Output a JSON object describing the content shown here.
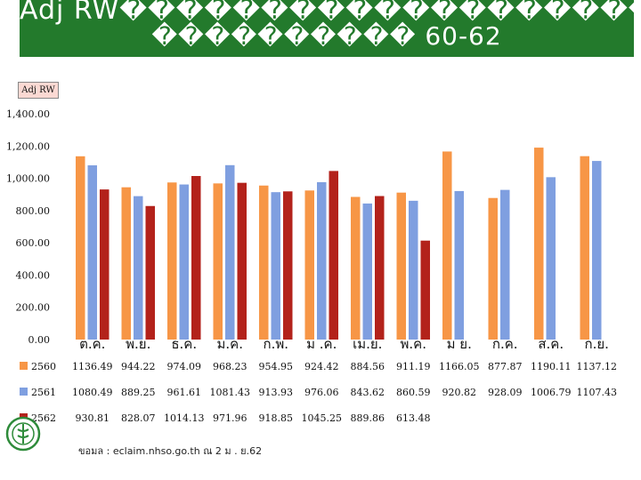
{
  "title": {
    "line1": "Adj RW����������������������อละละ",
    "line2": "���������� 60-62"
  },
  "chart_data": {
    "type": "bar",
    "y_axis_title": "Adj RW",
    "ylim": [
      0,
      1400
    ],
    "y_ticks": [
      "0.00",
      "200.00",
      "400.00",
      "600.00",
      "800.00",
      "1,000.00",
      "1,200.00",
      "1,400.00"
    ],
    "grid": false,
    "categories": [
      "ต.ค.",
      "พ.ย.",
      "ธ.ค.",
      "ม.ค.",
      "ก.พ.",
      "ม .ค.",
      "เม.ย.",
      "พ.ค.",
      "ม ย.",
      "ก.ค.",
      "ส.ค.",
      "ก.ย."
    ],
    "series": [
      {
        "name": "2560",
        "color": "#F79646",
        "values": [
          1136.49,
          944.22,
          974.09,
          968.23,
          954.95,
          924.42,
          884.56,
          911.19,
          1166.05,
          877.87,
          1190.11,
          1137.12
        ],
        "labels": [
          "1136.49",
          "944.22",
          "974.09",
          "968.23",
          "954.95",
          "924.42",
          "884.56",
          "911.19",
          "1166.05",
          "877.87",
          "1190.11",
          "1137.12"
        ]
      },
      {
        "name": "2561",
        "color": "#7F9FE0",
        "values": [
          1080.49,
          889.25,
          961.61,
          1081.43,
          913.93,
          976.06,
          843.62,
          860.59,
          920.82,
          928.09,
          1006.79,
          1107.43
        ],
        "labels": [
          "1080.49",
          "889.25",
          "961.61",
          "1081.43",
          "913.93",
          "976.06",
          "843.62",
          "860.59",
          "920.82",
          "928.09",
          "1006.79",
          "1107.43"
        ]
      },
      {
        "name": "2562",
        "color": "#B3221B",
        "values": [
          930.81,
          828.07,
          1014.13,
          971.96,
          918.85,
          1045.25,
          889.86,
          613.48,
          null,
          null,
          null,
          null
        ],
        "labels": [
          "930.81",
          "828.07",
          "1014.13",
          "971.96",
          "918.85",
          "1045.25",
          "889.86",
          "613.48",
          "",
          "",
          "",
          ""
        ]
      }
    ]
  },
  "footer": {
    "source": "ขอมล   : eclaim.nhso.go.th   ณ 2 ม  . ย.62"
  }
}
